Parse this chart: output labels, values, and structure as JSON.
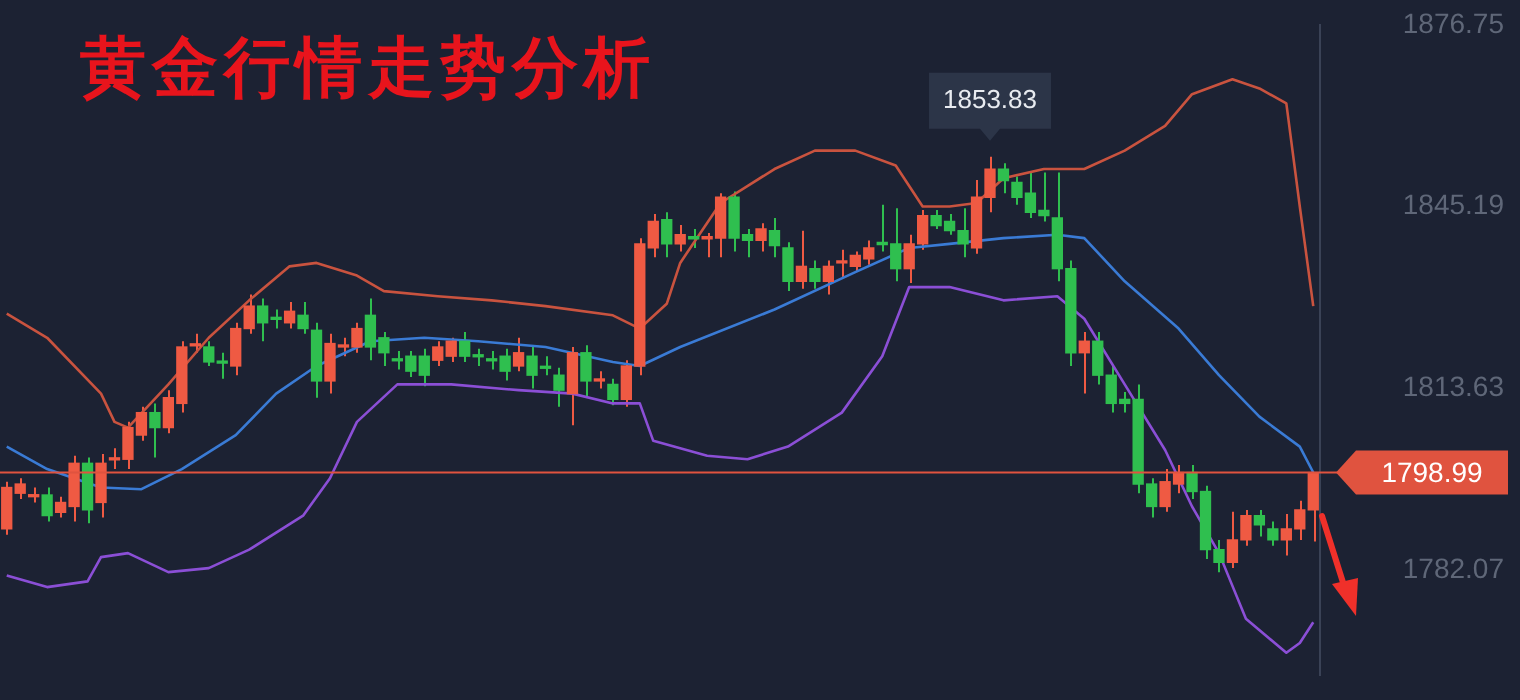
{
  "chart_data": {
    "type": "candlestick",
    "title": "黄金行情走势分析",
    "categories": [
      null,
      null,
      null,
      null,
      null,
      null,
      null,
      null,
      null,
      null,
      null,
      null,
      null,
      null,
      null,
      null,
      null,
      null,
      null,
      null,
      null,
      null,
      null,
      null,
      null,
      null,
      null,
      null,
      null,
      null,
      null,
      null,
      null,
      null,
      null,
      null,
      null,
      null,
      null,
      null,
      null,
      null,
      null,
      null,
      null,
      null,
      null,
      null,
      null,
      null,
      null,
      null,
      null,
      null,
      null,
      null,
      null,
      null,
      null,
      null,
      null,
      null,
      null,
      null,
      null,
      null,
      null,
      null,
      null,
      null,
      null,
      null,
      null,
      null,
      null,
      null,
      null,
      null,
      null,
      null,
      null,
      null,
      null,
      null,
      null,
      null,
      null,
      null,
      null,
      null,
      null,
      null,
      null,
      null,
      null,
      null,
      null,
      null
    ],
    "ohlc": [
      [
        1789.2,
        1797.4,
        1788.2,
        1796.4
      ],
      [
        1795.4,
        1798.0,
        1794.4,
        1797.0
      ],
      [
        1794.8,
        1796.4,
        1793.8,
        1794.9
      ],
      [
        1795.1,
        1796.4,
        1790.5,
        1791.5
      ],
      [
        1792.1,
        1794.8,
        1791.2,
        1793.8
      ],
      [
        1793.1,
        1801.9,
        1790.5,
        1800.6
      ],
      [
        1800.6,
        1801.6,
        1790.2,
        1792.5
      ],
      [
        1793.8,
        1802.2,
        1791.2,
        1800.6
      ],
      [
        1801.2,
        1803.2,
        1799.6,
        1801.3
      ],
      [
        1801.3,
        1807.8,
        1799.6,
        1806.8
      ],
      [
        1805.5,
        1810.4,
        1804.5,
        1809.4
      ],
      [
        1809.4,
        1811.0,
        1801.6,
        1806.8
      ],
      [
        1806.8,
        1813.3,
        1805.8,
        1812.0
      ],
      [
        1811.0,
        1821.8,
        1809.4,
        1820.8
      ],
      [
        1821.0,
        1823.1,
        1819.8,
        1821.1
      ],
      [
        1820.8,
        1821.8,
        1817.5,
        1818.2
      ],
      [
        1818.2,
        1819.8,
        1815.3,
        1818.0
      ],
      [
        1817.5,
        1825.0,
        1815.9,
        1824.0
      ],
      [
        1824.0,
        1829.9,
        1823.1,
        1827.9
      ],
      [
        1827.9,
        1829.2,
        1821.8,
        1825.0
      ],
      [
        1825.7,
        1827.3,
        1824.0,
        1825.6
      ],
      [
        1825.0,
        1828.6,
        1824.0,
        1827.0
      ],
      [
        1826.3,
        1828.6,
        1823.1,
        1824.0
      ],
      [
        1823.7,
        1825.0,
        1812.0,
        1814.9
      ],
      [
        1814.9,
        1823.1,
        1812.7,
        1821.4
      ],
      [
        1820.8,
        1822.4,
        1819.2,
        1820.9
      ],
      [
        1820.8,
        1825.0,
        1819.8,
        1824.0
      ],
      [
        1826.3,
        1829.2,
        1818.5,
        1820.8
      ],
      [
        1822.4,
        1823.4,
        1817.5,
        1819.8
      ],
      [
        1818.5,
        1820.1,
        1816.9,
        1818.4
      ],
      [
        1819.2,
        1820.1,
        1815.6,
        1816.6
      ],
      [
        1819.2,
        1820.5,
        1814.0,
        1815.9
      ],
      [
        1818.5,
        1821.8,
        1817.5,
        1820.8
      ],
      [
        1819.2,
        1822.4,
        1818.2,
        1821.8
      ],
      [
        1821.8,
        1823.4,
        1818.2,
        1819.2
      ],
      [
        1819.2,
        1820.5,
        1817.5,
        1819.1
      ],
      [
        1818.5,
        1820.1,
        1816.9,
        1818.4
      ],
      [
        1819.2,
        1820.5,
        1815.0,
        1816.6
      ],
      [
        1817.5,
        1822.4,
        1816.6,
        1819.8
      ],
      [
        1819.2,
        1820.8,
        1813.6,
        1815.9
      ],
      [
        1817.2,
        1819.2,
        1815.9,
        1817.1
      ],
      [
        1815.9,
        1817.2,
        1810.4,
        1813.3
      ],
      [
        1812.7,
        1820.8,
        1807.2,
        1819.8
      ],
      [
        1819.8,
        1821.1,
        1812.0,
        1814.9
      ],
      [
        1814.9,
        1816.6,
        1813.6,
        1815.0
      ],
      [
        1814.3,
        1815.3,
        1810.7,
        1811.7
      ],
      [
        1811.7,
        1818.5,
        1810.4,
        1817.5
      ],
      [
        1817.5,
        1839.7,
        1815.9,
        1838.7
      ],
      [
        1838.0,
        1843.9,
        1836.4,
        1842.6
      ],
      [
        1842.9,
        1844.2,
        1836.4,
        1838.7
      ],
      [
        1838.7,
        1842.0,
        1837.4,
        1840.3
      ],
      [
        1839.7,
        1841.3,
        1838.0,
        1839.6
      ],
      [
        1839.6,
        1840.6,
        1836.4,
        1839.7
      ],
      [
        1839.7,
        1847.5,
        1836.4,
        1846.8
      ],
      [
        1846.8,
        1847.8,
        1837.4,
        1839.7
      ],
      [
        1840.3,
        1841.3,
        1836.4,
        1839.3
      ],
      [
        1839.3,
        1842.3,
        1837.4,
        1841.3
      ],
      [
        1841.0,
        1843.2,
        1836.4,
        1838.4
      ],
      [
        1838.0,
        1839.0,
        1830.5,
        1832.2
      ],
      [
        1832.2,
        1841.0,
        1830.9,
        1834.8
      ],
      [
        1834.4,
        1835.8,
        1830.9,
        1832.2
      ],
      [
        1832.2,
        1835.8,
        1829.9,
        1834.8
      ],
      [
        1835.4,
        1837.7,
        1832.8,
        1835.5
      ],
      [
        1834.8,
        1837.4,
        1833.8,
        1836.7
      ],
      [
        1836.1,
        1839.3,
        1835.1,
        1838.0
      ],
      [
        1838.7,
        1845.5,
        1837.4,
        1838.6
      ],
      [
        1838.7,
        1844.9,
        1832.2,
        1834.4
      ],
      [
        1834.4,
        1840.3,
        1831.9,
        1838.7
      ],
      [
        1838.7,
        1844.6,
        1837.7,
        1843.6
      ],
      [
        1843.6,
        1844.6,
        1841.3,
        1841.9
      ],
      [
        1842.6,
        1843.9,
        1840.3,
        1841.0
      ],
      [
        1841.0,
        1844.9,
        1836.4,
        1838.7
      ],
      [
        1838.0,
        1849.8,
        1837.0,
        1846.8
      ],
      [
        1846.8,
        1853.83,
        1844.2,
        1851.7
      ],
      [
        1851.7,
        1852.7,
        1847.5,
        1849.7
      ],
      [
        1849.4,
        1850.4,
        1845.5,
        1846.8
      ],
      [
        1847.5,
        1851.1,
        1843.2,
        1844.2
      ],
      [
        1844.5,
        1851.1,
        1842.6,
        1843.6
      ],
      [
        1843.2,
        1851.1,
        1832.2,
        1834.4
      ],
      [
        1834.4,
        1835.8,
        1817.5,
        1819.8
      ],
      [
        1819.8,
        1823.4,
        1812.7,
        1821.8
      ],
      [
        1821.8,
        1823.4,
        1814.3,
        1815.9
      ],
      [
        1815.9,
        1817.5,
        1809.4,
        1811.0
      ],
      [
        1811.7,
        1813.0,
        1809.4,
        1811.0
      ],
      [
        1811.7,
        1814.3,
        1795.4,
        1797.0
      ],
      [
        1797.0,
        1798.0,
        1791.2,
        1793.1
      ],
      [
        1793.1,
        1799.6,
        1792.2,
        1797.4
      ],
      [
        1797.0,
        1800.3,
        1795.4,
        1799.0
      ],
      [
        1799.0,
        1800.3,
        1794.4,
        1795.7
      ],
      [
        1795.7,
        1796.7,
        1784.0,
        1785.6
      ],
      [
        1785.6,
        1787.3,
        1781.7,
        1783.4
      ],
      [
        1783.4,
        1792.2,
        1782.4,
        1787.3
      ],
      [
        1787.3,
        1792.5,
        1786.3,
        1791.5
      ],
      [
        1791.5,
        1792.5,
        1787.9,
        1789.9
      ],
      [
        1789.2,
        1790.5,
        1786.3,
        1787.3
      ],
      [
        1787.3,
        1791.8,
        1784.6,
        1789.2
      ],
      [
        1789.2,
        1794.1,
        1787.3,
        1792.5
      ],
      [
        1792.5,
        1799.0,
        1787.0,
        1798.99
      ]
    ],
    "series": [
      {
        "type": "line",
        "color": "#c9533f",
        "values": [
          1826.6,
          null,
          null,
          1822.4,
          null,
          null,
          null,
          1812.7,
          1807.8,
          1806.8,
          null,
          null,
          1814.3,
          null,
          null,
          1822.4,
          null,
          null,
          1828.9,
          null,
          null,
          1834.8,
          null,
          1835.4,
          null,
          null,
          1833.2,
          null,
          1830.5,
          null,
          null,
          null,
          1829.6,
          null,
          null,
          null,
          1828.9,
          null,
          null,
          null,
          1827.9,
          null,
          null,
          null,
          null,
          1826.3,
          null,
          1824.0,
          null,
          1828.3,
          1835.4,
          null,
          null,
          1845.8,
          null,
          null,
          null,
          1851.7,
          null,
          null,
          1854.9,
          null,
          null,
          1854.9,
          null,
          null,
          1852.3,
          null,
          1845.2,
          null,
          1845.2,
          null,
          1845.8,
          null,
          1850.1,
          null,
          null,
          1851.7,
          null,
          null,
          1851.7,
          null,
          null,
          1854.9,
          null,
          null,
          1859.2,
          null,
          1864.7,
          null,
          null,
          1867.3,
          null,
          1865.7,
          null,
          1863.1,
          1845.2,
          1827.9
        ]
      },
      {
        "type": "line",
        "color": "#3a7bd5",
        "values": [
          1803.5,
          null,
          null,
          1799.6,
          null,
          null,
          null,
          1796.4,
          null,
          null,
          1796.1,
          null,
          null,
          1799.6,
          null,
          null,
          null,
          1805.5,
          null,
          null,
          1812.7,
          null,
          null,
          1817.5,
          null,
          null,
          null,
          1821.8,
          null,
          null,
          null,
          1822.4,
          null,
          null,
          null,
          1821.8,
          null,
          null,
          null,
          null,
          1820.8,
          null,
          null,
          null,
          null,
          1818.2,
          null,
          1817.5,
          null,
          null,
          1820.8,
          null,
          null,
          null,
          null,
          null,
          null,
          1827.3,
          null,
          null,
          null,
          null,
          null,
          1833.8,
          null,
          null,
          null,
          1838.0,
          null,
          null,
          1838.7,
          null,
          null,
          null,
          1839.7,
          null,
          null,
          null,
          1840.3,
          null,
          1839.7,
          null,
          null,
          1832.2,
          null,
          null,
          null,
          1824.0,
          null,
          null,
          1815.9,
          null,
          null,
          1808.7,
          null,
          null,
          1803.5,
          1799.0
        ]
      },
      {
        "type": "line",
        "color": "#8b4fd6",
        "values": [
          1781.1,
          null,
          null,
          1779.1,
          null,
          null,
          1780.1,
          1784.3,
          null,
          1785.0,
          null,
          null,
          1781.7,
          null,
          null,
          1782.4,
          null,
          null,
          1785.6,
          null,
          null,
          null,
          1791.5,
          null,
          1798.0,
          null,
          1807.8,
          null,
          null,
          1814.3,
          null,
          null,
          null,
          1814.3,
          null,
          null,
          null,
          null,
          1813.3,
          null,
          null,
          null,
          1812.7,
          null,
          null,
          1811.0,
          null,
          1811.0,
          1804.5,
          null,
          null,
          null,
          1801.9,
          null,
          null,
          1801.3,
          null,
          null,
          1803.5,
          null,
          null,
          null,
          1809.4,
          null,
          null,
          1819.2,
          null,
          1831.2,
          null,
          null,
          1831.2,
          null,
          null,
          null,
          1828.9,
          null,
          null,
          null,
          1829.6,
          null,
          1825.7,
          null,
          null,
          1814.3,
          null,
          null,
          1802.9,
          null,
          1793.1,
          null,
          1785.0,
          null,
          1773.6,
          null,
          null,
          1767.7,
          1769.4,
          1773.0
        ]
      }
    ],
    "ylim": [
      1763.8,
      1876.75
    ],
    "yticks": [
      1782.07,
      1813.63,
      1845.19,
      1876.75
    ],
    "tick_labels": "y",
    "ref_lines": [
      {
        "axis": "y",
        "value": 1798.99,
        "label": "1798.99",
        "color": "#e0533f"
      }
    ],
    "annotations": [
      "1853.83"
    ]
  }
}
